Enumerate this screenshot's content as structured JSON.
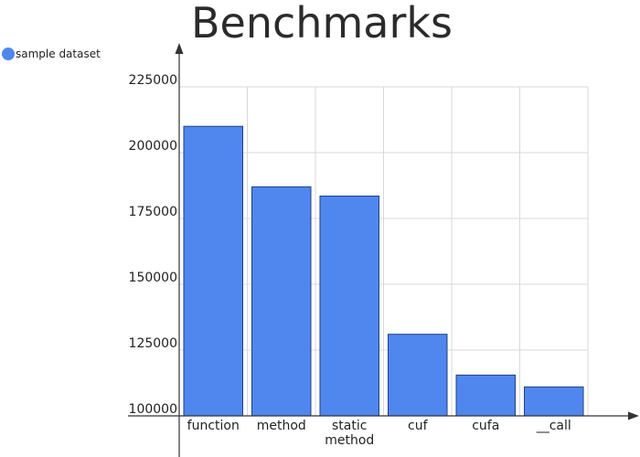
{
  "chart_data": {
    "type": "bar",
    "title": "Benchmarks",
    "categories": [
      "function",
      "method",
      "static method",
      "cuf",
      "cufa",
      "__call"
    ],
    "category_lines": [
      [
        "function"
      ],
      [
        "method"
      ],
      [
        "static",
        "method"
      ],
      [
        "cuf"
      ],
      [
        "cufa"
      ],
      [
        "__call"
      ]
    ],
    "series": [
      {
        "name": "sample dataset",
        "color": "#5087ee",
        "values": [
          210000,
          187000,
          183500,
          131000,
          115500,
          111000
        ]
      }
    ],
    "xlabel": "",
    "ylabel": "",
    "ylim": [
      100000,
      225000
    ],
    "yticks": [
      100000,
      125000,
      150000,
      175000,
      200000,
      225000
    ],
    "ytick_labels": [
      "100000",
      "125000",
      "150000",
      "175000",
      "200000",
      "225000"
    ],
    "grid": true,
    "legend_position": "top-left",
    "bar_color": "#5087ee",
    "grid_color": "#d8d8d8",
    "axis_color": "#333333"
  }
}
